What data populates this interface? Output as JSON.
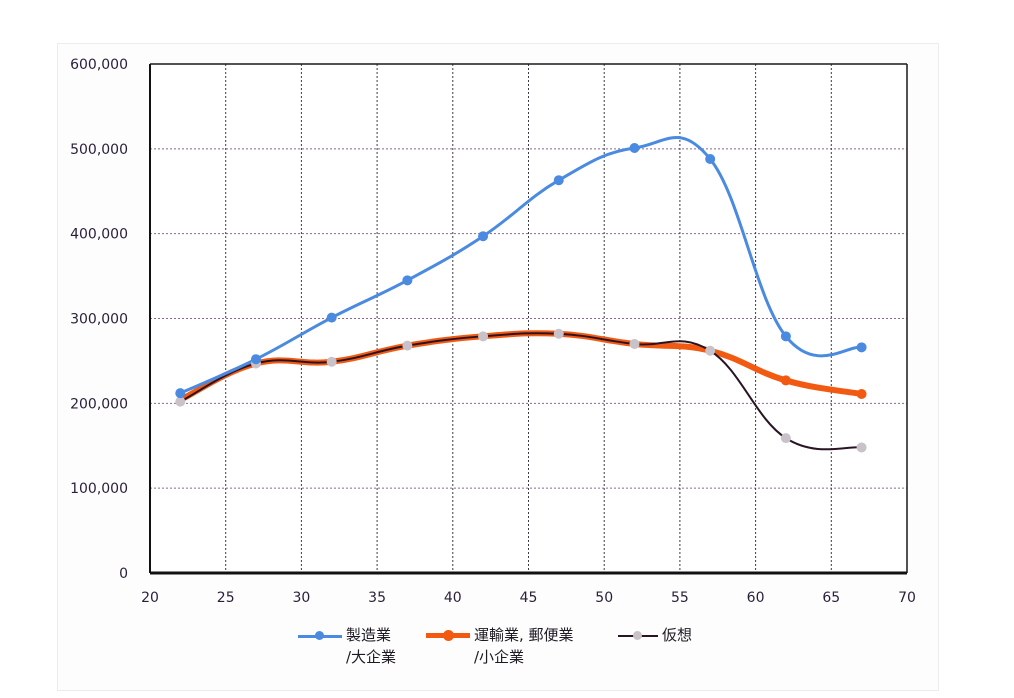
{
  "chart_data": {
    "type": "line",
    "title": "",
    "xlabel": "",
    "ylabel": "",
    "xlim": [
      20,
      70
    ],
    "ylim": [
      0,
      600000
    ],
    "x_ticks": [
      "20",
      "25",
      "30",
      "35",
      "40",
      "45",
      "50",
      "55",
      "60",
      "65",
      "70"
    ],
    "y_ticks": [
      "0",
      "100,000",
      "200,000",
      "300,000",
      "400,000",
      "500,000",
      "600,000"
    ],
    "grid": true,
    "legend_position": "bottom",
    "series": [
      {
        "name": "製造業/大企業",
        "name_line1": "製造業",
        "name_line2": "/大企業",
        "color": "#4a8ae0",
        "x": [
          22,
          27,
          32,
          37,
          42,
          47,
          52,
          57,
          62,
          67
        ],
        "values": [
          212000,
          252000,
          301000,
          345000,
          397000,
          463000,
          501000,
          488000,
          279000,
          266000
        ]
      },
      {
        "name": "運輸業, 郵便業/小企業",
        "name_line1": "運輸業, 郵便業",
        "name_line2": "/小企業",
        "color": "#f25a12",
        "x": [
          22,
          27,
          32,
          37,
          42,
          47,
          52,
          57,
          62,
          67
        ],
        "values": [
          204000,
          247000,
          249000,
          268000,
          279000,
          282000,
          270000,
          262000,
          227000,
          211000
        ]
      },
      {
        "name": "仮想",
        "name_line1": "仮想",
        "name_line2": "",
        "color": "#2a1424",
        "marker_color": "#c9c2c9",
        "x": [
          22,
          27,
          32,
          37,
          42,
          47,
          52,
          57,
          62,
          67
        ],
        "values": [
          202000,
          247000,
          249000,
          268000,
          279000,
          282000,
          270000,
          262000,
          159000,
          148000
        ]
      }
    ]
  }
}
